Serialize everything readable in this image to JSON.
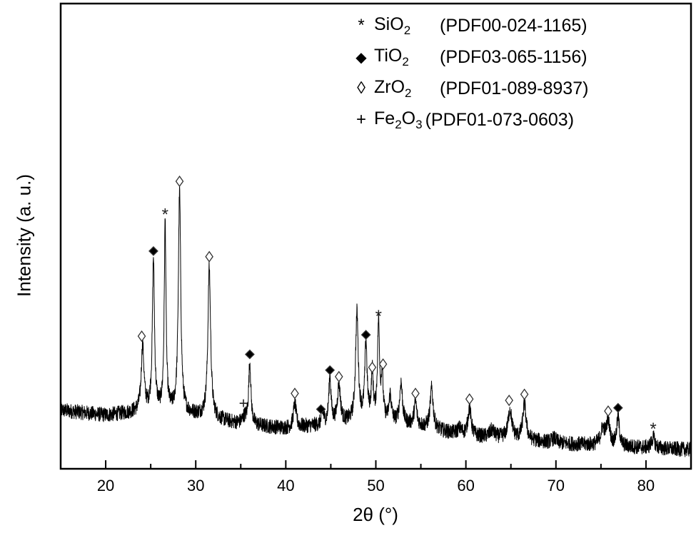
{
  "chart_data": {
    "type": "line",
    "title": "",
    "xlabel": "2θ (°)",
    "ylabel": "Intensity (a. u.)",
    "xlim": [
      15,
      85
    ],
    "ylim": [
      0,
      100
    ],
    "x_ticks_major": [
      20,
      30,
      40,
      50,
      60,
      70,
      80
    ],
    "x_ticks_minor": [
      25,
      35,
      45,
      55,
      65,
      75
    ],
    "y_ticks": [],
    "grid": false,
    "legend_position": "upper right",
    "legend": [
      {
        "marker": "asterisk",
        "symbol": "*",
        "phase": "SiO",
        "sub": "2",
        "phase2": "",
        "sub2": "",
        "ref": "(PDF00-024-1165)"
      },
      {
        "marker": "filled-diamond",
        "symbol": "◆",
        "phase": "TiO",
        "sub": "2",
        "phase2": "",
        "sub2": "",
        "ref": "(PDF03-065-1156)"
      },
      {
        "marker": "open-diamond",
        "symbol": "◊",
        "phase": "ZrO",
        "sub": "2",
        "phase2": "",
        "sub2": "",
        "ref": "(PDF01-089-8937)"
      },
      {
        "marker": "plus",
        "symbol": "+",
        "phase": "Fe",
        "sub": "2",
        "phase2": "O",
        "sub2": "3",
        "ref": "(PDF01-073-0603)"
      }
    ],
    "baseline": [
      [
        15,
        12.6
      ],
      [
        20,
        11.5
      ],
      [
        25,
        12.5
      ],
      [
        30,
        11.5
      ],
      [
        35,
        9.5
      ],
      [
        40,
        8.7
      ],
      [
        45,
        9.5
      ],
      [
        50,
        10.5
      ],
      [
        55,
        9.0
      ],
      [
        60,
        7.0
      ],
      [
        65,
        6.5
      ],
      [
        70,
        5.5
      ],
      [
        75,
        5.0
      ],
      [
        80,
        4.5
      ],
      [
        85,
        4.1
      ]
    ],
    "peaks": [
      {
        "x": 24.1,
        "y": 26.4,
        "w": 0.18,
        "label": "ZrO2"
      },
      {
        "x": 25.3,
        "y": 44.8,
        "w": 0.14,
        "label": "TiO2"
      },
      {
        "x": 26.6,
        "y": 52.8,
        "w": 0.12,
        "label": "SiO2"
      },
      {
        "x": 28.2,
        "y": 59.4,
        "w": 0.16,
        "label": "ZrO2"
      },
      {
        "x": 31.5,
        "y": 43.3,
        "w": 0.18,
        "label": "ZrO2"
      },
      {
        "x": 35.4,
        "y": 10.8,
        "w": 0.3,
        "label": "Fe2O3"
      },
      {
        "x": 36.0,
        "y": 22.5,
        "w": 0.15,
        "label": "TiO2"
      },
      {
        "x": 41.0,
        "y": 14.1,
        "w": 0.18,
        "label": "ZrO2"
      },
      {
        "x": 44.1,
        "y": 11.8,
        "w": 0.15,
        "label": "TiO2"
      },
      {
        "x": 44.9,
        "y": 19.5,
        "w": 0.15,
        "label": "TiO2"
      },
      {
        "x": 45.9,
        "y": 17.9,
        "w": 0.2,
        "label": "ZrO2"
      },
      {
        "x": 47.9,
        "y": 33.3,
        "w": 0.18,
        "label": ""
      },
      {
        "x": 48.9,
        "y": 26.8,
        "w": 0.15,
        "label": "TiO2"
      },
      {
        "x": 49.6,
        "y": 20.2,
        "w": 0.12,
        "label": "ZrO2"
      },
      {
        "x": 50.3,
        "y": 31.0,
        "w": 0.14,
        "label": "SiO2"
      },
      {
        "x": 50.7,
        "y": 19.5,
        "w": 0.12,
        "label": "ZrO2"
      },
      {
        "x": 51.6,
        "y": 15.6,
        "w": 0.15,
        "label": ""
      },
      {
        "x": 52.8,
        "y": 18.4,
        "w": 0.18,
        "label": ""
      },
      {
        "x": 54.4,
        "y": 14.1,
        "w": 0.18,
        "label": "ZrO2"
      },
      {
        "x": 56.2,
        "y": 17.2,
        "w": 0.2,
        "label": ""
      },
      {
        "x": 59.3,
        "y": 8.5,
        "w": 0.3,
        "label": ""
      },
      {
        "x": 60.4,
        "y": 12.9,
        "w": 0.22,
        "label": "ZrO2"
      },
      {
        "x": 62.9,
        "y": 8.2,
        "w": 0.3,
        "label": ""
      },
      {
        "x": 64.9,
        "y": 12.6,
        "w": 0.25,
        "label": "ZrO2"
      },
      {
        "x": 66.5,
        "y": 13.8,
        "w": 0.22,
        "label": "ZrO2"
      },
      {
        "x": 69.8,
        "y": 6.5,
        "w": 0.3,
        "label": ""
      },
      {
        "x": 75.2,
        "y": 8.5,
        "w": 0.3,
        "label": ""
      },
      {
        "x": 75.8,
        "y": 10.3,
        "w": 0.2,
        "label": "ZrO2"
      },
      {
        "x": 76.9,
        "y": 11.0,
        "w": 0.18,
        "label": "TiO2"
      },
      {
        "x": 80.8,
        "y": 6.7,
        "w": 0.22,
        "label": "SiO2"
      }
    ],
    "markers": [
      {
        "x": 24.0,
        "y": 28.5,
        "symbol": "open-diamond"
      },
      {
        "x": 25.3,
        "y": 46.8,
        "symbol": "filled-diamond"
      },
      {
        "x": 26.6,
        "y": 55.0,
        "symbol": "asterisk"
      },
      {
        "x": 28.2,
        "y": 61.8,
        "symbol": "open-diamond"
      },
      {
        "x": 31.5,
        "y": 45.6,
        "symbol": "open-diamond"
      },
      {
        "x": 35.3,
        "y": 14.0,
        "symbol": "plus"
      },
      {
        "x": 36.0,
        "y": 24.6,
        "symbol": "filled-diamond"
      },
      {
        "x": 41.0,
        "y": 16.2,
        "symbol": "open-diamond"
      },
      {
        "x": 43.9,
        "y": 12.8,
        "symbol": "filled-diamond"
      },
      {
        "x": 44.9,
        "y": 21.2,
        "symbol": "filled-diamond"
      },
      {
        "x": 45.9,
        "y": 19.8,
        "symbol": "open-diamond"
      },
      {
        "x": 48.9,
        "y": 28.8,
        "symbol": "filled-diamond"
      },
      {
        "x": 49.6,
        "y": 21.8,
        "symbol": "open-diamond"
      },
      {
        "x": 50.3,
        "y": 33.1,
        "symbol": "asterisk"
      },
      {
        "x": 50.8,
        "y": 22.5,
        "symbol": "open-diamond"
      },
      {
        "x": 54.4,
        "y": 16.2,
        "symbol": "open-diamond"
      },
      {
        "x": 60.4,
        "y": 15.0,
        "symbol": "open-diamond"
      },
      {
        "x": 64.8,
        "y": 14.7,
        "symbol": "open-diamond"
      },
      {
        "x": 66.5,
        "y": 16.0,
        "symbol": "open-diamond"
      },
      {
        "x": 75.8,
        "y": 12.4,
        "symbol": "open-diamond"
      },
      {
        "x": 76.9,
        "y": 13.1,
        "symbol": "filled-diamond"
      },
      {
        "x": 80.8,
        "y": 8.9,
        "symbol": "asterisk"
      }
    ],
    "noise_amplitude": 1.6,
    "colors": {
      "line": "#000000",
      "axis": "#000000",
      "background": "#ffffff"
    }
  }
}
